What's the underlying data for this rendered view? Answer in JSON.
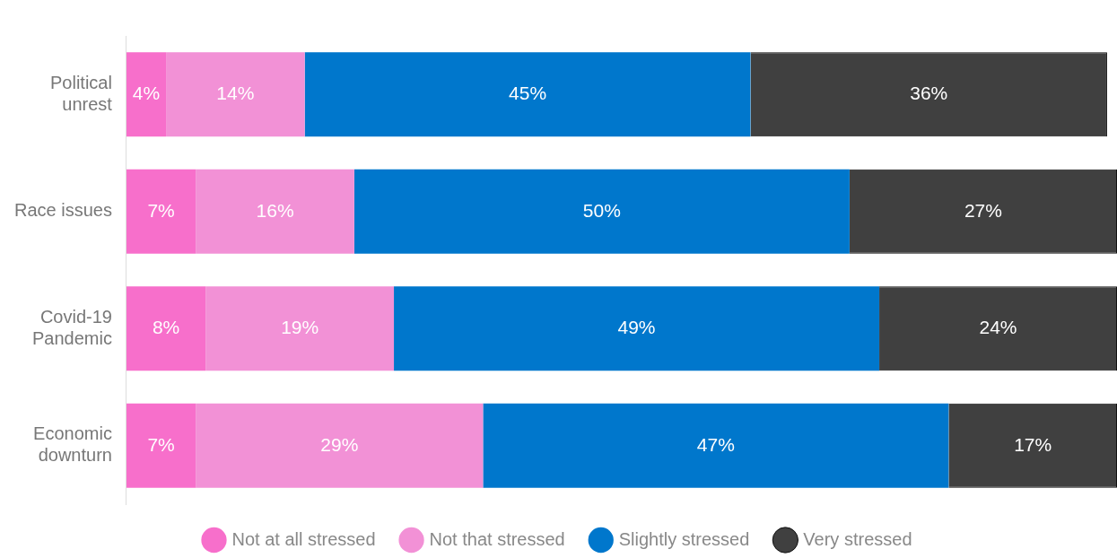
{
  "chart_data": {
    "type": "bar",
    "orientation": "horizontal",
    "stacked": true,
    "legend": "bottom",
    "grid": false,
    "categories": [
      "Political unrest",
      "Race issues",
      "Covid-19 Pandemic",
      "Economic downturn"
    ],
    "series": [
      {
        "name": "Not at all stressed",
        "color": "#f76fcb",
        "values": [
          4,
          7,
          8,
          7
        ],
        "value_labels": [
          "4%",
          "7%",
          "8%",
          "7%"
        ]
      },
      {
        "name": "Not that stressed",
        "color": "#f291d6",
        "values": [
          14,
          16,
          19,
          29
        ],
        "value_labels": [
          "14%",
          "16%",
          "19%",
          "29%"
        ]
      },
      {
        "name": "Slightly stressed",
        "color": "#0077cc",
        "values": [
          45,
          50,
          49,
          47
        ],
        "value_labels": [
          "45%",
          "50%",
          "49%",
          "47%"
        ]
      },
      {
        "name": "Very stressed",
        "color": "#404040",
        "values": [
          36,
          27,
          24,
          17
        ],
        "value_labels": [
          "36%",
          "27%",
          "24%",
          "17%"
        ]
      }
    ]
  }
}
